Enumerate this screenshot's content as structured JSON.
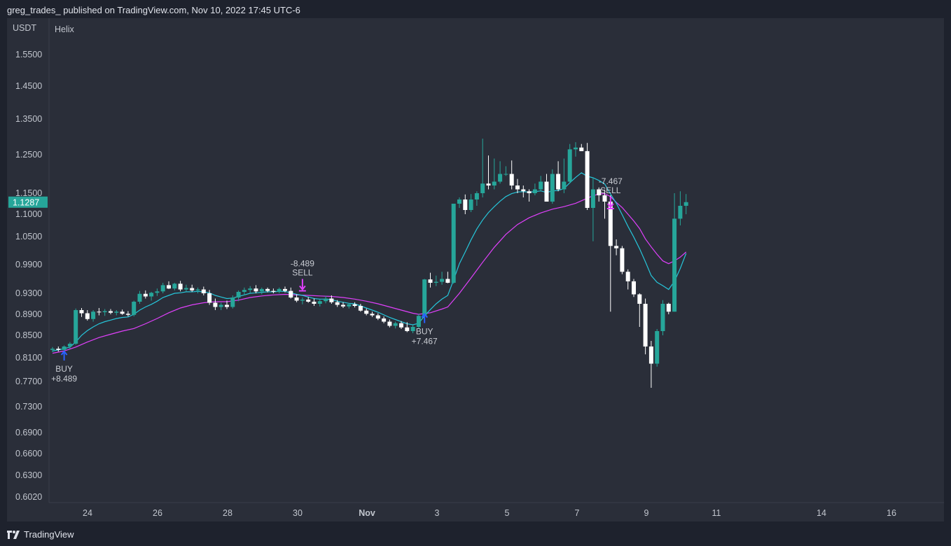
{
  "header": {
    "published_text": "greg_trades_ published on TradingView.com, Nov 10, 2022 17:45 UTC-6"
  },
  "footer": {
    "brand": "TradingView",
    "brand_icon": "tradingview-logo-icon"
  },
  "colors": {
    "background": "#1e222d",
    "panel": "#2a2e39",
    "bull": "#26a69a",
    "bear": "#ffffff",
    "ma_fast": "#26c6da",
    "ma_slow": "#e040fb",
    "buy": "#2962ff",
    "sell": "#e040fb",
    "price_tag": "#26a69a"
  },
  "chart_data": {
    "type": "candlestick",
    "title": "Helix",
    "currency": "USDT",
    "last_price": "1.1287",
    "y_ticks": [
      "1.5500",
      "1.4500",
      "1.3500",
      "1.2500",
      "1.1500",
      "1.1000",
      "1.0500",
      "0.9900",
      "0.9300",
      "0.8900",
      "0.8500",
      "0.8100",
      "0.7700",
      "0.7300",
      "0.6900",
      "0.6600",
      "0.6300",
      "0.6020"
    ],
    "x_ticks": [
      "24",
      "26",
      "28",
      "30",
      "Nov",
      "3",
      "5",
      "7",
      "9",
      "11",
      "14",
      "16"
    ],
    "bar_interval_hours": 4,
    "first_bar": "Oct 23, 12:00",
    "candles": [
      [
        0.824,
        0.829,
        0.82,
        0.826
      ],
      [
        0.826,
        0.83,
        0.821,
        0.824
      ],
      [
        0.824,
        0.832,
        0.82,
        0.83
      ],
      [
        0.83,
        0.838,
        0.826,
        0.835
      ],
      [
        0.835,
        0.901,
        0.833,
        0.898
      ],
      [
        0.898,
        0.902,
        0.885,
        0.892
      ],
      [
        0.892,
        0.898,
        0.878,
        0.881
      ],
      [
        0.881,
        0.898,
        0.876,
        0.895
      ],
      [
        0.895,
        0.902,
        0.888,
        0.894
      ],
      [
        0.894,
        0.9,
        0.887,
        0.896
      ],
      [
        0.896,
        0.9,
        0.89,
        0.893
      ],
      [
        0.893,
        0.898,
        0.888,
        0.895
      ],
      [
        0.895,
        0.899,
        0.889,
        0.891
      ],
      [
        0.891,
        0.896,
        0.886,
        0.889
      ],
      [
        0.889,
        0.916,
        0.886,
        0.914
      ],
      [
        0.914,
        0.935,
        0.91,
        0.929
      ],
      [
        0.929,
        0.936,
        0.92,
        0.924
      ],
      [
        0.924,
        0.933,
        0.916,
        0.931
      ],
      [
        0.931,
        0.94,
        0.925,
        0.934
      ],
      [
        0.934,
        0.952,
        0.93,
        0.947
      ],
      [
        0.947,
        0.955,
        0.939,
        0.94
      ],
      [
        0.94,
        0.952,
        0.936,
        0.95
      ],
      [
        0.95,
        0.956,
        0.934,
        0.938
      ],
      [
        0.938,
        0.948,
        0.934,
        0.941
      ],
      [
        0.941,
        0.948,
        0.933,
        0.936
      ],
      [
        0.936,
        0.942,
        0.93,
        0.938
      ],
      [
        0.938,
        0.944,
        0.926,
        0.93
      ],
      [
        0.93,
        0.937,
        0.908,
        0.912
      ],
      [
        0.912,
        0.92,
        0.898,
        0.904
      ],
      [
        0.904,
        0.912,
        0.898,
        0.908
      ],
      [
        0.908,
        0.916,
        0.9,
        0.904
      ],
      [
        0.904,
        0.926,
        0.901,
        0.922
      ],
      [
        0.922,
        0.936,
        0.915,
        0.933
      ],
      [
        0.933,
        0.942,
        0.926,
        0.937
      ],
      [
        0.937,
        0.945,
        0.931,
        0.94
      ],
      [
        0.94,
        0.947,
        0.93,
        0.934
      ],
      [
        0.934,
        0.942,
        0.928,
        0.939
      ],
      [
        0.939,
        0.942,
        0.932,
        0.935
      ],
      [
        0.935,
        0.94,
        0.93,
        0.933
      ],
      [
        0.933,
        0.942,
        0.93,
        0.939
      ],
      [
        0.939,
        0.944,
        0.932,
        0.935
      ],
      [
        0.935,
        0.942,
        0.92,
        0.922
      ],
      [
        0.922,
        0.928,
        0.913,
        0.916
      ],
      [
        0.916,
        0.922,
        0.909,
        0.918
      ],
      [
        0.918,
        0.923,
        0.912,
        0.914
      ],
      [
        0.914,
        0.92,
        0.906,
        0.91
      ],
      [
        0.91,
        0.918,
        0.905,
        0.915
      ],
      [
        0.915,
        0.925,
        0.911,
        0.92
      ],
      [
        0.92,
        0.926,
        0.91,
        0.913
      ],
      [
        0.913,
        0.917,
        0.904,
        0.908
      ],
      [
        0.908,
        0.913,
        0.902,
        0.905
      ],
      [
        0.905,
        0.911,
        0.901,
        0.909
      ],
      [
        0.909,
        0.913,
        0.903,
        0.906
      ],
      [
        0.906,
        0.91,
        0.895,
        0.897
      ],
      [
        0.897,
        0.901,
        0.888,
        0.891
      ],
      [
        0.891,
        0.895,
        0.885,
        0.888
      ],
      [
        0.888,
        0.892,
        0.879,
        0.882
      ],
      [
        0.882,
        0.886,
        0.873,
        0.876
      ],
      [
        0.876,
        0.88,
        0.865,
        0.868
      ],
      [
        0.868,
        0.876,
        0.863,
        0.873
      ],
      [
        0.873,
        0.877,
        0.862,
        0.865
      ],
      [
        0.865,
        0.875,
        0.856,
        0.858
      ],
      [
        0.858,
        0.87,
        0.854,
        0.866
      ],
      [
        0.866,
        0.891,
        0.862,
        0.887
      ],
      [
        0.887,
        0.96,
        0.885,
        0.959
      ],
      [
        0.959,
        0.973,
        0.942,
        0.952
      ],
      [
        0.952,
        0.967,
        0.945,
        0.954
      ],
      [
        0.954,
        0.975,
        0.948,
        0.96
      ],
      [
        0.96,
        0.975,
        0.951,
        0.952
      ],
      [
        0.952,
        1.125,
        0.95,
        1.125
      ],
      [
        1.125,
        1.14,
        1.115,
        1.135
      ],
      [
        1.135,
        1.147,
        1.1,
        1.11
      ],
      [
        1.11,
        1.148,
        1.105,
        1.135
      ],
      [
        1.135,
        1.155,
        1.12,
        1.15
      ],
      [
        1.15,
        1.295,
        1.14,
        1.175
      ],
      [
        1.175,
        1.248,
        1.16,
        1.17
      ],
      [
        1.17,
        1.24,
        1.16,
        1.18
      ],
      [
        1.18,
        1.233,
        1.175,
        1.2
      ],
      [
        1.2,
        1.22,
        1.195,
        1.2
      ],
      [
        1.2,
        1.235,
        1.16,
        1.17
      ],
      [
        1.17,
        1.187,
        1.15,
        1.16
      ],
      [
        1.16,
        1.17,
        1.14,
        1.155
      ],
      [
        1.155,
        1.16,
        1.13,
        1.15
      ],
      [
        1.15,
        1.175,
        1.145,
        1.16
      ],
      [
        1.16,
        1.195,
        1.155,
        1.18
      ],
      [
        1.18,
        1.2,
        1.13,
        1.13
      ],
      [
        1.13,
        1.212,
        1.125,
        1.2
      ],
      [
        1.2,
        1.233,
        1.155,
        1.16
      ],
      [
        1.16,
        1.24,
        1.15,
        1.18
      ],
      [
        1.18,
        1.28,
        1.175,
        1.265
      ],
      [
        1.265,
        1.285,
        1.245,
        1.27
      ],
      [
        1.27,
        1.28,
        1.26,
        1.26
      ],
      [
        1.26,
        1.283,
        1.11,
        1.115
      ],
      [
        1.115,
        1.19,
        1.04,
        1.16
      ],
      [
        1.16,
        1.165,
        1.13,
        1.145
      ],
      [
        1.145,
        1.159,
        1.09,
        1.13
      ],
      [
        1.13,
        1.145,
        0.895,
        1.03
      ],
      [
        1.03,
        1.044,
        1.01,
        1.025
      ],
      [
        1.025,
        1.03,
        0.97,
        0.975
      ],
      [
        0.975,
        0.98,
        0.938,
        0.955
      ],
      [
        0.955,
        0.96,
        0.923,
        0.928
      ],
      [
        0.928,
        0.93,
        0.866,
        0.91
      ],
      [
        0.91,
        0.92,
        0.816,
        0.83
      ],
      [
        0.83,
        0.84,
        0.76,
        0.8
      ],
      [
        0.8,
        0.862,
        0.795,
        0.858
      ],
      [
        0.858,
        0.917,
        0.85,
        0.91
      ],
      [
        0.91,
        0.912,
        0.89,
        0.895
      ],
      [
        0.895,
        1.15,
        0.895,
        1.09
      ],
      [
        1.09,
        1.155,
        1.075,
        1.12
      ],
      [
        1.12,
        1.148,
        1.1,
        1.1287
      ]
    ],
    "ma_fast": [
      [
        0,
        0.822
      ],
      [
        1,
        0.824
      ],
      [
        2,
        0.826
      ],
      [
        3,
        0.829
      ],
      [
        4,
        0.838
      ],
      [
        5,
        0.85
      ],
      [
        6,
        0.859
      ],
      [
        7,
        0.866
      ],
      [
        8,
        0.872
      ],
      [
        9,
        0.876
      ],
      [
        10,
        0.879
      ],
      [
        11,
        0.882
      ],
      [
        12,
        0.884
      ],
      [
        13,
        0.885
      ],
      [
        14,
        0.89
      ],
      [
        15,
        0.898
      ],
      [
        16,
        0.904
      ],
      [
        17,
        0.909
      ],
      [
        18,
        0.915
      ],
      [
        19,
        0.922
      ],
      [
        20,
        0.926
      ],
      [
        21,
        0.93
      ],
      [
        22,
        0.931
      ],
      [
        23,
        0.933
      ],
      [
        24,
        0.933
      ],
      [
        25,
        0.934
      ],
      [
        26,
        0.933
      ],
      [
        27,
        0.931
      ],
      [
        28,
        0.926
      ],
      [
        29,
        0.923
      ],
      [
        30,
        0.92
      ],
      [
        31,
        0.921
      ],
      [
        32,
        0.924
      ],
      [
        33,
        0.927
      ],
      [
        34,
        0.93
      ],
      [
        35,
        0.931
      ],
      [
        36,
        0.932
      ],
      [
        37,
        0.933
      ],
      [
        38,
        0.933
      ],
      [
        39,
        0.934
      ],
      [
        40,
        0.934
      ],
      [
        41,
        0.931
      ],
      [
        42,
        0.928
      ],
      [
        43,
        0.926
      ],
      [
        44,
        0.923
      ],
      [
        45,
        0.92
      ],
      [
        46,
        0.919
      ],
      [
        47,
        0.919
      ],
      [
        48,
        0.918
      ],
      [
        49,
        0.915
      ],
      [
        50,
        0.913
      ],
      [
        51,
        0.911
      ],
      [
        52,
        0.91
      ],
      [
        53,
        0.906
      ],
      [
        54,
        0.902
      ],
      [
        55,
        0.898
      ],
      [
        56,
        0.894
      ],
      [
        57,
        0.889
      ],
      [
        58,
        0.884
      ],
      [
        59,
        0.88
      ],
      [
        60,
        0.876
      ],
      [
        61,
        0.872
      ],
      [
        62,
        0.87
      ],
      [
        63,
        0.873
      ],
      [
        64,
        0.887
      ],
      [
        65,
        0.899
      ],
      [
        66,
        0.91
      ],
      [
        67,
        0.919
      ],
      [
        68,
        0.926
      ],
      [
        69,
        0.958
      ],
      [
        70,
        0.992
      ],
      [
        71,
        1.017
      ],
      [
        72,
        1.043
      ],
      [
        73,
        1.067
      ],
      [
        74,
        1.087
      ],
      [
        75,
        1.104
      ],
      [
        76,
        1.118
      ],
      [
        77,
        1.131
      ],
      [
        78,
        1.142
      ],
      [
        79,
        1.149
      ],
      [
        80,
        1.153
      ],
      [
        81,
        1.154
      ],
      [
        82,
        1.153
      ],
      [
        83,
        1.154
      ],
      [
        84,
        1.156
      ],
      [
        85,
        1.152
      ],
      [
        86,
        1.156
      ],
      [
        87,
        1.157
      ],
      [
        88,
        1.162
      ],
      [
        89,
        1.177
      ],
      [
        90,
        1.191
      ],
      [
        91,
        1.203
      ],
      [
        92,
        1.194
      ],
      [
        93,
        1.19
      ],
      [
        94,
        1.183
      ],
      [
        95,
        1.174
      ],
      [
        96,
        1.148
      ],
      [
        97,
        1.126
      ],
      [
        98,
        1.099
      ],
      [
        99,
        1.073
      ],
      [
        100,
        1.049
      ],
      [
        101,
        1.024
      ],
      [
        102,
        0.996
      ],
      [
        103,
        0.967
      ],
      [
        104,
        0.953
      ],
      [
        105,
        0.946
      ],
      [
        106,
        0.938
      ],
      [
        107,
        0.955
      ],
      [
        108,
        0.982
      ],
      [
        109,
        1.014
      ]
    ],
    "ma_slow": [
      [
        0,
        0.818
      ],
      [
        2,
        0.822
      ],
      [
        4,
        0.829
      ],
      [
        6,
        0.838
      ],
      [
        8,
        0.846
      ],
      [
        10,
        0.852
      ],
      [
        12,
        0.858
      ],
      [
        14,
        0.863
      ],
      [
        16,
        0.872
      ],
      [
        18,
        0.882
      ],
      [
        20,
        0.893
      ],
      [
        22,
        0.902
      ],
      [
        24,
        0.908
      ],
      [
        26,
        0.912
      ],
      [
        28,
        0.914
      ],
      [
        30,
        0.914
      ],
      [
        32,
        0.917
      ],
      [
        34,
        0.922
      ],
      [
        36,
        0.925
      ],
      [
        38,
        0.927
      ],
      [
        40,
        0.928
      ],
      [
        42,
        0.927
      ],
      [
        44,
        0.926
      ],
      [
        46,
        0.925
      ],
      [
        48,
        0.924
      ],
      [
        50,
        0.922
      ],
      [
        52,
        0.919
      ],
      [
        54,
        0.915
      ],
      [
        56,
        0.91
      ],
      [
        58,
        0.904
      ],
      [
        60,
        0.898
      ],
      [
        62,
        0.892
      ],
      [
        63,
        0.89
      ],
      [
        65,
        0.893
      ],
      [
        67,
        0.9
      ],
      [
        68,
        0.904
      ],
      [
        70,
        0.93
      ],
      [
        72,
        0.962
      ],
      [
        74,
        0.995
      ],
      [
        76,
        1.027
      ],
      [
        78,
        1.055
      ],
      [
        80,
        1.077
      ],
      [
        82,
        1.092
      ],
      [
        84,
        1.103
      ],
      [
        86,
        1.112
      ],
      [
        88,
        1.118
      ],
      [
        90,
        1.126
      ],
      [
        91,
        1.132
      ],
      [
        92,
        1.138
      ],
      [
        93,
        1.144
      ],
      [
        94,
        1.148
      ],
      [
        95,
        1.149
      ],
      [
        96,
        1.142
      ],
      [
        97,
        1.128
      ],
      [
        98,
        1.116
      ],
      [
        99,
        1.1
      ],
      [
        100,
        1.085
      ],
      [
        101,
        1.068
      ],
      [
        102,
        1.045
      ],
      [
        103,
        1.028
      ],
      [
        104,
        1.012
      ],
      [
        105,
        0.998
      ],
      [
        106,
        0.992
      ],
      [
        107,
        0.998
      ],
      [
        108,
        1.006
      ],
      [
        109,
        1.017
      ]
    ],
    "signals": [
      {
        "type": "buy",
        "bar": 2,
        "price": 0.83,
        "value": "+8.489",
        "label": "BUY"
      },
      {
        "type": "sell",
        "bar": 43,
        "price": 0.928,
        "value": "-8.489",
        "label": "SELL"
      },
      {
        "type": "buy",
        "bar": 64,
        "price": 0.9,
        "value": "+7.467",
        "label": "BUY"
      },
      {
        "type": "sell",
        "bar": 96,
        "price": 1.105,
        "value": "-7.467",
        "label": "SELL"
      }
    ]
  }
}
